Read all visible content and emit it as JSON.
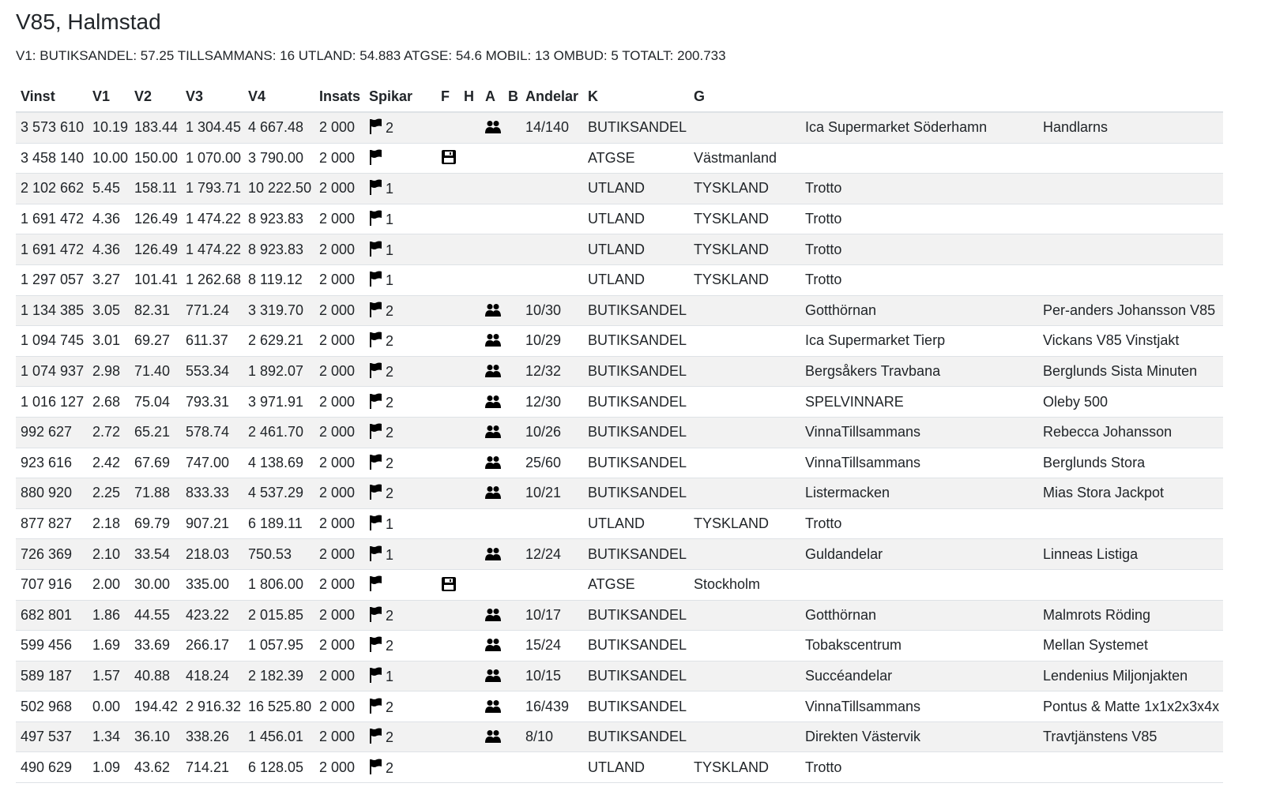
{
  "title": "V85, Halmstad",
  "summary": "V1: BUTIKSANDEL: 57.25 TILLSAMMANS: 16 UTLAND: 54.883 ATGSE: 54.6 MOBIL: 13 OMBUD: 5 TOTALT: 200.733",
  "columns": [
    "Vinst",
    "V1",
    "V2",
    "V3",
    "V4",
    "Insats",
    "Spikar",
    "F",
    "H",
    "A",
    "B",
    "Andelar",
    "K",
    "G",
    "",
    ""
  ],
  "rows": [
    {
      "vinst": "3 573 610",
      "v1": "10.19",
      "v2": "183.44",
      "v3": "1 304.45",
      "v4": "4 667.48",
      "insats": "2 000",
      "spikar": "2",
      "f": "",
      "a": "group-icon",
      "andelar": "14/140",
      "k": "BUTIKSANDEL",
      "g": "",
      "ombud": "Ica Supermarket Söderhamn",
      "lag": "Handlarns"
    },
    {
      "vinst": "3 458 140",
      "v1": "10.00",
      "v2": "150.00",
      "v3": "1 070.00",
      "v4": "3 790.00",
      "insats": "2 000",
      "spikar": "",
      "f": "save-icon",
      "a": "",
      "andelar": "",
      "k": "ATGSE",
      "g": "Västmanland",
      "ombud": "",
      "lag": ""
    },
    {
      "vinst": "2 102 662",
      "v1": "5.45",
      "v2": "158.11",
      "v3": "1 793.71",
      "v4": "10 222.50",
      "insats": "2 000",
      "spikar": "1",
      "f": "",
      "a": "",
      "andelar": "",
      "k": "UTLAND",
      "g": "TYSKLAND",
      "ombud": "Trotto",
      "lag": ""
    },
    {
      "vinst": "1 691 472",
      "v1": "4.36",
      "v2": "126.49",
      "v3": "1 474.22",
      "v4": "8 923.83",
      "insats": "2 000",
      "spikar": "1",
      "f": "",
      "a": "",
      "andelar": "",
      "k": "UTLAND",
      "g": "TYSKLAND",
      "ombud": "Trotto",
      "lag": ""
    },
    {
      "vinst": "1 691 472",
      "v1": "4.36",
      "v2": "126.49",
      "v3": "1 474.22",
      "v4": "8 923.83",
      "insats": "2 000",
      "spikar": "1",
      "f": "",
      "a": "",
      "andelar": "",
      "k": "UTLAND",
      "g": "TYSKLAND",
      "ombud": "Trotto",
      "lag": ""
    },
    {
      "vinst": "1 297 057",
      "v1": "3.27",
      "v2": "101.41",
      "v3": "1 262.68",
      "v4": "8 119.12",
      "insats": "2 000",
      "spikar": "1",
      "f": "",
      "a": "",
      "andelar": "",
      "k": "UTLAND",
      "g": "TYSKLAND",
      "ombud": "Trotto",
      "lag": ""
    },
    {
      "vinst": "1 134 385",
      "v1": "3.05",
      "v2": "82.31",
      "v3": "771.24",
      "v4": "3 319.70",
      "insats": "2 000",
      "spikar": "2",
      "f": "",
      "a": "group-icon",
      "andelar": "10/30",
      "k": "BUTIKSANDEL",
      "g": "",
      "ombud": "Gotthörnan",
      "lag": "Per-anders Johansson V85"
    },
    {
      "vinst": "1 094 745",
      "v1": "3.01",
      "v2": "69.27",
      "v3": "611.37",
      "v4": "2 629.21",
      "insats": "2 000",
      "spikar": "2",
      "f": "",
      "a": "group-icon",
      "andelar": "10/29",
      "k": "BUTIKSANDEL",
      "g": "",
      "ombud": "Ica Supermarket Tierp",
      "lag": "Vickans V85 Vinstjakt"
    },
    {
      "vinst": "1 074 937",
      "v1": "2.98",
      "v2": "71.40",
      "v3": "553.34",
      "v4": "1 892.07",
      "insats": "2 000",
      "spikar": "2",
      "f": "",
      "a": "group-icon",
      "andelar": "12/32",
      "k": "BUTIKSANDEL",
      "g": "",
      "ombud": "Bergsåkers Travbana",
      "lag": "Berglunds Sista Minuten"
    },
    {
      "vinst": "1 016 127",
      "v1": "2.68",
      "v2": "75.04",
      "v3": "793.31",
      "v4": "3 971.91",
      "insats": "2 000",
      "spikar": "2",
      "f": "",
      "a": "group-icon",
      "andelar": "12/30",
      "k": "BUTIKSANDEL",
      "g": "",
      "ombud": "SPELVINNARE",
      "lag": "Oleby 500"
    },
    {
      "vinst": "992 627",
      "v1": "2.72",
      "v2": "65.21",
      "v3": "578.74",
      "v4": "2 461.70",
      "insats": "2 000",
      "spikar": "2",
      "f": "",
      "a": "group-icon",
      "andelar": "10/26",
      "k": "BUTIKSANDEL",
      "g": "",
      "ombud": "VinnaTillsammans",
      "lag": "Rebecca Johansson"
    },
    {
      "vinst": "923 616",
      "v1": "2.42",
      "v2": "67.69",
      "v3": "747.00",
      "v4": "4 138.69",
      "insats": "2 000",
      "spikar": "2",
      "f": "",
      "a": "group-icon",
      "andelar": "25/60",
      "k": "BUTIKSANDEL",
      "g": "",
      "ombud": "VinnaTillsammans",
      "lag": "Berglunds Stora"
    },
    {
      "vinst": "880 920",
      "v1": "2.25",
      "v2": "71.88",
      "v3": "833.33",
      "v4": "4 537.29",
      "insats": "2 000",
      "spikar": "2",
      "f": "",
      "a": "group-icon",
      "andelar": "10/21",
      "k": "BUTIKSANDEL",
      "g": "",
      "ombud": "Listermacken",
      "lag": "Mias Stora Jackpot"
    },
    {
      "vinst": "877 827",
      "v1": "2.18",
      "v2": "69.79",
      "v3": "907.21",
      "v4": "6 189.11",
      "insats": "2 000",
      "spikar": "1",
      "f": "",
      "a": "",
      "andelar": "",
      "k": "UTLAND",
      "g": "TYSKLAND",
      "ombud": "Trotto",
      "lag": ""
    },
    {
      "vinst": "726 369",
      "v1": "2.10",
      "v2": "33.54",
      "v3": "218.03",
      "v4": "750.53",
      "insats": "2 000",
      "spikar": "1",
      "f": "",
      "a": "group-icon",
      "andelar": "12/24",
      "k": "BUTIKSANDEL",
      "g": "",
      "ombud": "Guldandelar",
      "lag": "Linneas Listiga"
    },
    {
      "vinst": "707 916",
      "v1": "2.00",
      "v2": "30.00",
      "v3": "335.00",
      "v4": "1 806.00",
      "insats": "2 000",
      "spikar": "",
      "f": "save-icon",
      "a": "",
      "andelar": "",
      "k": "ATGSE",
      "g": "Stockholm",
      "ombud": "",
      "lag": ""
    },
    {
      "vinst": "682 801",
      "v1": "1.86",
      "v2": "44.55",
      "v3": "423.22",
      "v4": "2 015.85",
      "insats": "2 000",
      "spikar": "2",
      "f": "",
      "a": "group-icon",
      "andelar": "10/17",
      "k": "BUTIKSANDEL",
      "g": "",
      "ombud": "Gotthörnan",
      "lag": "Malmrots Röding"
    },
    {
      "vinst": "599 456",
      "v1": "1.69",
      "v2": "33.69",
      "v3": "266.17",
      "v4": "1 057.95",
      "insats": "2 000",
      "spikar": "2",
      "f": "",
      "a": "group-icon",
      "andelar": "15/24",
      "k": "BUTIKSANDEL",
      "g": "",
      "ombud": "Tobakscentrum",
      "lag": "Mellan Systemet"
    },
    {
      "vinst": "589 187",
      "v1": "1.57",
      "v2": "40.88",
      "v3": "418.24",
      "v4": "2 182.39",
      "insats": "2 000",
      "spikar": "1",
      "f": "",
      "a": "group-icon",
      "andelar": "10/15",
      "k": "BUTIKSANDEL",
      "g": "",
      "ombud": "Succéandelar",
      "lag": "Lendenius Miljonjakten"
    },
    {
      "vinst": "502 968",
      "v1": "0.00",
      "v2": "194.42",
      "v3": "2 916.32",
      "v4": "16 525.80",
      "insats": "2 000",
      "spikar": "2",
      "f": "",
      "a": "group-icon",
      "andelar": "16/439",
      "k": "BUTIKSANDEL",
      "g": "",
      "ombud": "VinnaTillsammans",
      "lag": "Pontus & Matte 1x1x2x3x4x"
    },
    {
      "vinst": "497 537",
      "v1": "1.34",
      "v2": "36.10",
      "v3": "338.26",
      "v4": "1 456.01",
      "insats": "2 000",
      "spikar": "2",
      "f": "",
      "a": "group-icon",
      "andelar": "8/10",
      "k": "BUTIKSANDEL",
      "g": "",
      "ombud": "Direkten Västervik",
      "lag": "Travtjänstens V85"
    },
    {
      "vinst": "490 629",
      "v1": "1.09",
      "v2": "43.62",
      "v3": "714.21",
      "v4": "6 128.05",
      "insats": "2 000",
      "spikar": "2",
      "f": "",
      "a": "",
      "andelar": "",
      "k": "UTLAND",
      "g": "TYSKLAND",
      "ombud": "Trotto",
      "lag": ""
    }
  ]
}
